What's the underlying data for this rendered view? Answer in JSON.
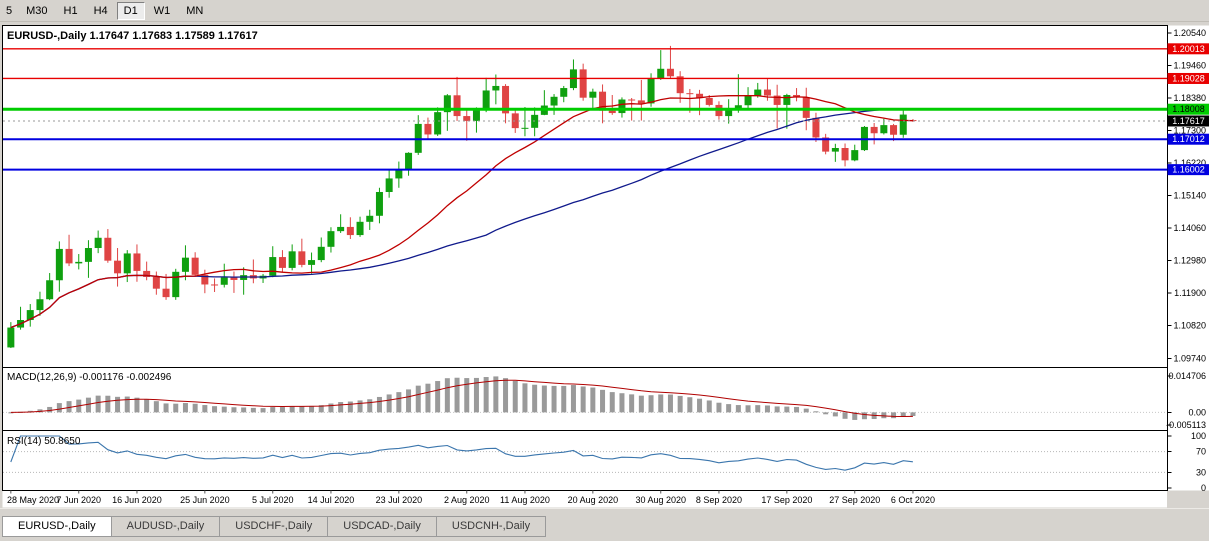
{
  "toolbar": {
    "timeframes": [
      {
        "label": "5",
        "active": false
      },
      {
        "label": "M30",
        "active": false
      },
      {
        "label": "H1",
        "active": false
      },
      {
        "label": "H4",
        "active": false
      },
      {
        "label": "D1",
        "active": true
      },
      {
        "label": "W1",
        "active": false
      },
      {
        "label": "MN",
        "active": false
      }
    ]
  },
  "main_chart": {
    "title": "EURUSD-,Daily 1.17647 1.17683 1.17589 1.17617"
  },
  "macd": {
    "label": "MACD(12,26,9) -0.001176 -0.002496",
    "axis": [
      "0.014706",
      "0.00",
      "-0.005113"
    ]
  },
  "rsi": {
    "label": "RSI(14) 50.8650",
    "axis": [
      "100",
      "70",
      "30",
      "0"
    ]
  },
  "tabs": [
    {
      "label": "EURUSD-,Daily",
      "active": true
    },
    {
      "label": "AUDUSD-,Daily",
      "active": false
    },
    {
      "label": "USDCHF-,Daily",
      "active": false
    },
    {
      "label": "USDCAD-,Daily",
      "active": false
    },
    {
      "label": "USDCNH-,Daily",
      "active": false
    }
  ],
  "chart_data": {
    "type": "candlestick",
    "symbol": "EURUSD",
    "timeframe": "Daily",
    "ohlc_current": {
      "open": 1.17647,
      "high": 1.17683,
      "low": 1.17589,
      "close": 1.17617
    },
    "price_axis_ticks": [
      "1.20540",
      "1.19460",
      "1.18380",
      "1.17300",
      "1.16220",
      "1.15140",
      "1.14060",
      "1.12980",
      "1.11900",
      "1.10820",
      "1.09740"
    ],
    "levels": [
      {
        "value": 1.20013,
        "label": "1.20013",
        "color": "#e80000",
        "text": "#ffffff",
        "width": 1.4
      },
      {
        "value": 1.19028,
        "label": "1.19028",
        "color": "#e80000",
        "text": "#ffffff",
        "width": 1.4
      },
      {
        "value": 1.18008,
        "label": "1.18008",
        "color": "#00cc00",
        "text": "#000000",
        "width": 3
      },
      {
        "value": 1.17012,
        "label": "1.17012",
        "color": "#0000e0",
        "text": "#ffffff",
        "width": 2
      },
      {
        "value": 1.16002,
        "label": "1.16002",
        "color": "#0000e0",
        "text": "#ffffff",
        "width": 2
      }
    ],
    "current_price": {
      "value": 1.17617,
      "label": "1.17617",
      "box_color": "#000000",
      "text": "#ffffff"
    },
    "date_ticks": [
      {
        "label": "28 May 2020",
        "index": 0
      },
      {
        "label": "7 Jun 2020",
        "index": 7
      },
      {
        "label": "16 Jun 2020",
        "index": 13
      },
      {
        "label": "25 Jun 2020",
        "index": 20
      },
      {
        "label": "5 Jul 2020",
        "index": 27
      },
      {
        "label": "14 Jul 2020",
        "index": 33
      },
      {
        "label": "23 Jul 2020",
        "index": 40
      },
      {
        "label": "2 Aug 2020",
        "index": 47
      },
      {
        "label": "11 Aug 2020",
        "index": 53
      },
      {
        "label": "20 Aug 2020",
        "index": 60
      },
      {
        "label": "30 Aug 2020",
        "index": 67
      },
      {
        "label": "8 Sep 2020",
        "index": 73
      },
      {
        "label": "17 Sep 2020",
        "index": 80
      },
      {
        "label": "27 Sep 2020",
        "index": 87
      },
      {
        "label": "6 Oct 2020",
        "index": 93
      }
    ],
    "candles": [
      [
        1.101,
        1.1094,
        1.1008,
        1.1076
      ],
      [
        1.1076,
        1.1145,
        1.1069,
        1.1101
      ],
      [
        1.1101,
        1.1154,
        1.1079,
        1.1134
      ],
      [
        1.1134,
        1.1195,
        1.1115,
        1.117
      ],
      [
        1.117,
        1.1257,
        1.1167,
        1.1233
      ],
      [
        1.1233,
        1.1362,
        1.1195,
        1.1337
      ],
      [
        1.1337,
        1.1384,
        1.128,
        1.1289
      ],
      [
        1.1289,
        1.132,
        1.1269,
        1.1294
      ],
      [
        1.1294,
        1.1366,
        1.1241,
        1.134
      ],
      [
        1.134,
        1.1398,
        1.1323,
        1.1374
      ],
      [
        1.1374,
        1.1403,
        1.1291,
        1.1298
      ],
      [
        1.1298,
        1.134,
        1.1212,
        1.1256
      ],
      [
        1.1256,
        1.1333,
        1.1227,
        1.1322
      ],
      [
        1.1322,
        1.1352,
        1.1228,
        1.1264
      ],
      [
        1.1264,
        1.1295,
        1.1233,
        1.1244
      ],
      [
        1.1244,
        1.1262,
        1.1185,
        1.1205
      ],
      [
        1.1205,
        1.1254,
        1.1168,
        1.1177
      ],
      [
        1.1177,
        1.1271,
        1.1168,
        1.1261
      ],
      [
        1.1261,
        1.1349,
        1.1233,
        1.1308
      ],
      [
        1.1308,
        1.1326,
        1.1245,
        1.1251
      ],
      [
        1.1251,
        1.1268,
        1.119,
        1.1219
      ],
      [
        1.1219,
        1.1239,
        1.1194,
        1.1218
      ],
      [
        1.1218,
        1.1288,
        1.1209,
        1.1242
      ],
      [
        1.1242,
        1.1262,
        1.1191,
        1.1234
      ],
      [
        1.1234,
        1.1276,
        1.1185,
        1.125
      ],
      [
        1.125,
        1.1302,
        1.1223,
        1.1239
      ],
      [
        1.1239,
        1.1254,
        1.1224,
        1.1248
      ],
      [
        1.1248,
        1.1346,
        1.1243,
        1.131
      ],
      [
        1.131,
        1.1333,
        1.1259,
        1.1274
      ],
      [
        1.1274,
        1.1352,
        1.1266,
        1.1329
      ],
      [
        1.1329,
        1.1371,
        1.1276,
        1.1284
      ],
      [
        1.1284,
        1.1325,
        1.1255,
        1.13
      ],
      [
        1.13,
        1.1375,
        1.1293,
        1.1344
      ],
      [
        1.1344,
        1.1409,
        1.1325,
        1.1396
      ],
      [
        1.1396,
        1.1452,
        1.139,
        1.141
      ],
      [
        1.141,
        1.1442,
        1.137,
        1.1383
      ],
      [
        1.1383,
        1.1444,
        1.1377,
        1.1427
      ],
      [
        1.1427,
        1.1467,
        1.14,
        1.1447
      ],
      [
        1.1447,
        1.154,
        1.1422,
        1.1526
      ],
      [
        1.1526,
        1.1601,
        1.1507,
        1.1571
      ],
      [
        1.1571,
        1.1627,
        1.154,
        1.1598
      ],
      [
        1.1598,
        1.1658,
        1.158,
        1.1656
      ],
      [
        1.1656,
        1.1781,
        1.1649,
        1.1752
      ],
      [
        1.1752,
        1.1773,
        1.17,
        1.1717
      ],
      [
        1.1717,
        1.1807,
        1.1712,
        1.1791
      ],
      [
        1.1791,
        1.1851,
        1.1729,
        1.1847
      ],
      [
        1.1847,
        1.1908,
        1.1762,
        1.1778
      ],
      [
        1.1778,
        1.1797,
        1.1696,
        1.1762
      ],
      [
        1.1762,
        1.1807,
        1.1723,
        1.1803
      ],
      [
        1.1803,
        1.1905,
        1.1791,
        1.1863
      ],
      [
        1.1863,
        1.1916,
        1.1817,
        1.1878
      ],
      [
        1.1878,
        1.1884,
        1.1754,
        1.1787
      ],
      [
        1.1787,
        1.1804,
        1.1722,
        1.1738
      ],
      [
        1.1738,
        1.1808,
        1.1711,
        1.1739
      ],
      [
        1.1739,
        1.1807,
        1.1711,
        1.1782
      ],
      [
        1.1782,
        1.1864,
        1.1781,
        1.1813
      ],
      [
        1.1813,
        1.1851,
        1.1782,
        1.1842
      ],
      [
        1.1842,
        1.1878,
        1.1824,
        1.1871
      ],
      [
        1.1871,
        1.1966,
        1.1864,
        1.1933
      ],
      [
        1.1933,
        1.1952,
        1.1829,
        1.1839
      ],
      [
        1.1839,
        1.1869,
        1.1802,
        1.1859
      ],
      [
        1.1859,
        1.1883,
        1.1754,
        1.1796
      ],
      [
        1.1796,
        1.1848,
        1.1782,
        1.1788
      ],
      [
        1.1788,
        1.184,
        1.1773,
        1.1833
      ],
      [
        1.1833,
        1.1838,
        1.1763,
        1.183
      ],
      [
        1.183,
        1.1898,
        1.1763,
        1.182
      ],
      [
        1.182,
        1.192,
        1.1809,
        1.1903
      ],
      [
        1.1903,
        1.1997,
        1.1898,
        1.1935
      ],
      [
        1.1935,
        1.2011,
        1.1901,
        1.191
      ],
      [
        1.191,
        1.1927,
        1.1822,
        1.1854
      ],
      [
        1.1854,
        1.1868,
        1.1789,
        1.1852
      ],
      [
        1.1852,
        1.1865,
        1.1781,
        1.1838
      ],
      [
        1.1838,
        1.1848,
        1.181,
        1.1815
      ],
      [
        1.1815,
        1.1827,
        1.1766,
        1.1778
      ],
      [
        1.1778,
        1.1834,
        1.1753,
        1.1802
      ],
      [
        1.1802,
        1.1917,
        1.1789,
        1.1814
      ],
      [
        1.1814,
        1.1874,
        1.1799,
        1.1845
      ],
      [
        1.1845,
        1.1888,
        1.1839,
        1.1866
      ],
      [
        1.1866,
        1.1901,
        1.1829,
        1.1846
      ],
      [
        1.1846,
        1.1882,
        1.1737,
        1.1815
      ],
      [
        1.1815,
        1.1852,
        1.1736,
        1.1848
      ],
      [
        1.1848,
        1.1871,
        1.1827,
        1.184
      ],
      [
        1.184,
        1.1872,
        1.1731,
        1.1772
      ],
      [
        1.1772,
        1.1789,
        1.1692,
        1.1707
      ],
      [
        1.1707,
        1.1719,
        1.1651,
        1.166
      ],
      [
        1.166,
        1.1686,
        1.1626,
        1.1672
      ],
      [
        1.1672,
        1.1687,
        1.1611,
        1.1631
      ],
      [
        1.1631,
        1.1683,
        1.1628,
        1.1665
      ],
      [
        1.1665,
        1.1745,
        1.1662,
        1.1742
      ],
      [
        1.1742,
        1.1755,
        1.1684,
        1.1721
      ],
      [
        1.1721,
        1.1769,
        1.1717,
        1.1748
      ],
      [
        1.1748,
        1.1752,
        1.1695,
        1.1716
      ],
      [
        1.1716,
        1.1799,
        1.1706,
        1.1783
      ],
      [
        1.17647,
        1.17683,
        1.17589,
        1.17617
      ]
    ],
    "indicators": {
      "macd": {
        "name": "MACD",
        "params": "12,26,9",
        "value": -0.001176,
        "signal_value": -0.002496,
        "scale_max": 0.014706,
        "scale_min": -0.005113
      },
      "rsi": {
        "name": "RSI",
        "params": "14",
        "value": 50.865,
        "overbought": 70,
        "oversold": 30
      }
    },
    "colors": {
      "bull": "#0fa00f",
      "bear": "#df4444",
      "ma_fast": "#c00000",
      "ma_slow": "#101a8c",
      "macd_hist": "#9a9a9a",
      "macd_signal": "#b00000",
      "rsi_line": "#3b76ad"
    }
  }
}
